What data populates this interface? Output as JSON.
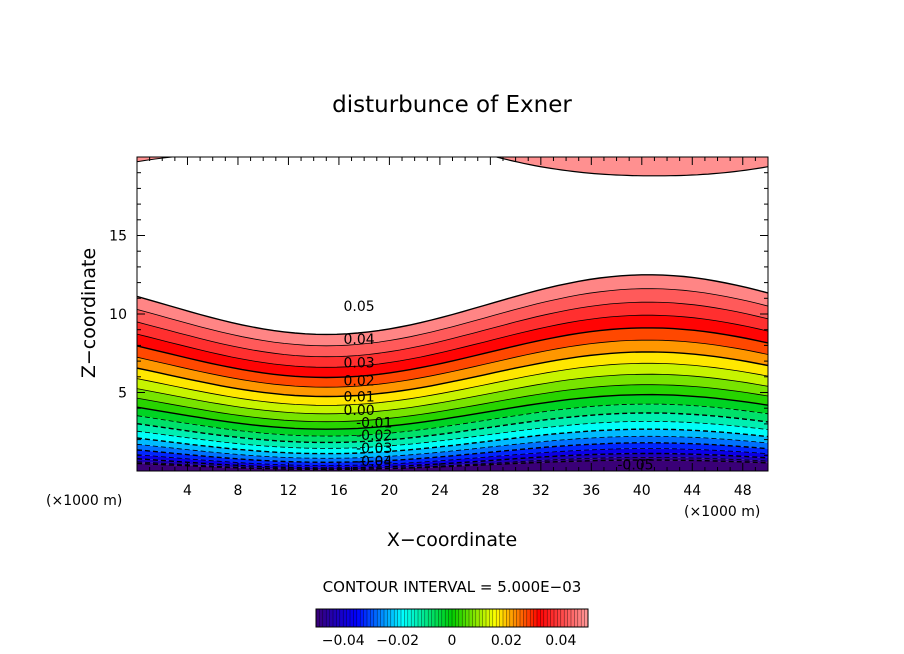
{
  "chart_data": {
    "type": "contour",
    "title": "disturbunce of Exner",
    "xlabel": "X−coordinate",
    "ylabel": "Z−coordinate",
    "x_unit_left": "(×1000 m)",
    "x_unit_right": "(×1000 m)",
    "xlim": [
      0,
      50
    ],
    "ylim": [
      0,
      20
    ],
    "x_ticks": [
      4,
      8,
      12,
      16,
      20,
      24,
      28,
      32,
      36,
      40,
      44,
      48
    ],
    "y_ticks": [
      5,
      10,
      15
    ],
    "contour_interval_text": "CONTOUR INTERVAL = 5.000E−03",
    "contour_interval": 0.005,
    "contour_labels": [
      {
        "text": "0.05",
        "x": 17.6,
        "y": 10.5
      },
      {
        "text": "0.04",
        "x": 17.6,
        "y": 8.4
      },
      {
        "text": "0.03",
        "x": 17.6,
        "y": 6.9
      },
      {
        "text": "0.02",
        "x": 17.6,
        "y": 5.75
      },
      {
        "text": "0.01",
        "x": 17.6,
        "y": 4.75
      },
      {
        "text": "0.00",
        "x": 17.6,
        "y": 3.9
      },
      {
        "text": "-0.01",
        "x": 18.8,
        "y": 3.1
      },
      {
        "text": "-0.02",
        "x": 18.8,
        "y": 2.3
      },
      {
        "text": "-0.03",
        "x": 18.8,
        "y": 1.45
      },
      {
        "text": "-0.04",
        "x": 18.8,
        "y": 0.65
      },
      {
        "text": "-0.05",
        "x": 39.5,
        "y": 0.4
      }
    ],
    "colorbar": {
      "min": -0.05,
      "max": 0.05,
      "tick_values": [
        -0.04,
        -0.02,
        0,
        0.02,
        0.04
      ],
      "tick_labels": [
        "−0.04",
        "−0.02",
        "0",
        "0.02",
        "0.04"
      ]
    },
    "colors": {
      "low": "#3a0077",
      "blue": "#0000ff",
      "cyan": "#00ffff",
      "green": "#00cc00",
      "yellow": "#ffff00",
      "red": "#ff0000",
      "high": "#ff9a9a"
    }
  }
}
